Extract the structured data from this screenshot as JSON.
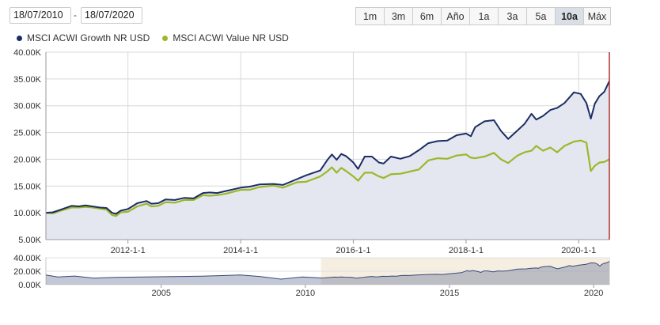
{
  "date_range": {
    "start": "18/07/2010",
    "separator": "-",
    "end": "18/07/2020"
  },
  "range_buttons": [
    {
      "label": "1m",
      "active": false
    },
    {
      "label": "3m",
      "active": false
    },
    {
      "label": "6m",
      "active": false
    },
    {
      "label": "Año",
      "active": false
    },
    {
      "label": "1a",
      "active": false
    },
    {
      "label": "3a",
      "active": false
    },
    {
      "label": "5a",
      "active": false
    },
    {
      "label": "10a",
      "active": true
    },
    {
      "label": "Máx",
      "active": false
    }
  ],
  "colors": {
    "growth": "#1c2d63",
    "value": "#9bb82a",
    "area": "#e4e7f0",
    "grid": "#d8d8d8",
    "navigator_window": "#f6eee0",
    "end_marker": "#b03030"
  },
  "chart_data": [
    {
      "type": "line",
      "title": "",
      "xlabel": "",
      "ylabel": "",
      "ylim": [
        5000,
        40000
      ],
      "yticks": [
        5000,
        10000,
        15000,
        20000,
        25000,
        30000,
        35000,
        40000
      ],
      "ytick_labels": [
        "5.00K",
        "10.00K",
        "15.00K",
        "20.00K",
        "25.00K",
        "30.00K",
        "35.00K",
        "40.00K"
      ],
      "xlim": [
        "2010-07-18",
        "2020-07-18"
      ],
      "xticks": [
        "2012-01-01",
        "2014-01-01",
        "2016-01-01",
        "2018-01-01",
        "2020-01-01"
      ],
      "xtick_labels": [
        "2012-1-1",
        "2014-1-1",
        "2016-1-1",
        "2018-1-1",
        "2020-1-1"
      ],
      "grid": true,
      "legend_position": "top-left",
      "series": [
        {
          "name": "MSCI ACWI Growth NR USD",
          "points": [
            [
              "2010-07-18",
              10000
            ],
            [
              "2010-09-01",
              10100
            ],
            [
              "2010-11-01",
              10700
            ],
            [
              "2011-01-01",
              11300
            ],
            [
              "2011-02-15",
              11200
            ],
            [
              "2011-04-01",
              11400
            ],
            [
              "2011-05-15",
              11200
            ],
            [
              "2011-07-01",
              11000
            ],
            [
              "2011-08-15",
              10900
            ],
            [
              "2011-09-20",
              10000
            ],
            [
              "2011-10-15",
              9800
            ],
            [
              "2011-11-15",
              10400
            ],
            [
              "2012-01-01",
              10700
            ],
            [
              "2012-03-01",
              11800
            ],
            [
              "2012-05-01",
              12200
            ],
            [
              "2012-06-01",
              11700
            ],
            [
              "2012-07-15",
              11800
            ],
            [
              "2012-09-01",
              12500
            ],
            [
              "2012-11-01",
              12400
            ],
            [
              "2013-01-01",
              12800
            ],
            [
              "2013-03-01",
              12700
            ],
            [
              "2013-05-01",
              13700
            ],
            [
              "2013-06-15",
              13800
            ],
            [
              "2013-08-01",
              13700
            ],
            [
              "2013-10-01",
              14100
            ],
            [
              "2014-01-01",
              14700
            ],
            [
              "2014-03-01",
              14900
            ],
            [
              "2014-05-01",
              15300
            ],
            [
              "2014-08-01",
              15400
            ],
            [
              "2014-10-01",
              15200
            ],
            [
              "2015-01-01",
              16300
            ],
            [
              "2015-03-01",
              17000
            ],
            [
              "2015-06-01",
              17900
            ],
            [
              "2015-07-15",
              19800
            ],
            [
              "2015-08-15",
              20900
            ],
            [
              "2015-09-15",
              19900
            ],
            [
              "2015-10-15",
              21000
            ],
            [
              "2015-11-15",
              20600
            ],
            [
              "2016-01-01",
              19400
            ],
            [
              "2016-02-01",
              18200
            ],
            [
              "2016-03-15",
              20500
            ],
            [
              "2016-05-01",
              20500
            ],
            [
              "2016-06-15",
              19400
            ],
            [
              "2016-07-15",
              19200
            ],
            [
              "2016-09-01",
              20500
            ],
            [
              "2016-11-01",
              20100
            ],
            [
              "2017-01-01",
              20600
            ],
            [
              "2017-03-01",
              21700
            ],
            [
              "2017-05-01",
              23000
            ],
            [
              "2017-07-01",
              23400
            ],
            [
              "2017-09-01",
              23500
            ],
            [
              "2017-11-01",
              24500
            ],
            [
              "2018-01-01",
              24800
            ],
            [
              "2018-02-01",
              24300
            ],
            [
              "2018-03-01",
              26000
            ],
            [
              "2018-05-01",
              27100
            ],
            [
              "2018-07-01",
              27300
            ],
            [
              "2018-08-15",
              25300
            ],
            [
              "2018-10-01",
              23800
            ],
            [
              "2018-12-01",
              25400
            ],
            [
              "2019-01-15",
              26600
            ],
            [
              "2019-03-01",
              28500
            ],
            [
              "2019-04-01",
              27400
            ],
            [
              "2019-05-15",
              28100
            ],
            [
              "2019-07-01",
              29200
            ],
            [
              "2019-08-15",
              29600
            ],
            [
              "2019-10-01",
              30500
            ],
            [
              "2019-12-01",
              32500
            ],
            [
              "2020-01-15",
              32200
            ],
            [
              "2020-02-20",
              30500
            ],
            [
              "2020-03-20",
              27600
            ],
            [
              "2020-04-15",
              30400
            ],
            [
              "2020-05-15",
              31800
            ],
            [
              "2020-06-15",
              32600
            ],
            [
              "2020-07-18",
              34600
            ]
          ]
        },
        {
          "name": "MSCI ACWI Value NR USD",
          "points": [
            [
              "2010-07-18",
              10000
            ],
            [
              "2010-09-01",
              9900
            ],
            [
              "2010-11-01",
              10500
            ],
            [
              "2011-01-01",
              11000
            ],
            [
              "2011-02-15",
              11000
            ],
            [
              "2011-04-01",
              11100
            ],
            [
              "2011-05-15",
              11000
            ],
            [
              "2011-07-01",
              10800
            ],
            [
              "2011-08-15",
              10600
            ],
            [
              "2011-09-20",
              9600
            ],
            [
              "2011-10-15",
              9400
            ],
            [
              "2011-11-15",
              10100
            ],
            [
              "2012-01-01",
              10200
            ],
            [
              "2012-03-01",
              11200
            ],
            [
              "2012-05-01",
              11700
            ],
            [
              "2012-06-01",
              11200
            ],
            [
              "2012-07-15",
              11300
            ],
            [
              "2012-09-01",
              12000
            ],
            [
              "2012-11-01",
              11900
            ],
            [
              "2013-01-01",
              12400
            ],
            [
              "2013-03-01",
              12400
            ],
            [
              "2013-05-01",
              13300
            ],
            [
              "2013-06-15",
              13200
            ],
            [
              "2013-08-01",
              13300
            ],
            [
              "2013-10-01",
              13600
            ],
            [
              "2014-01-01",
              14300
            ],
            [
              "2014-03-01",
              14300
            ],
            [
              "2014-05-01",
              14800
            ],
            [
              "2014-08-01",
              15100
            ],
            [
              "2014-10-01",
              14700
            ],
            [
              "2015-01-01",
              15700
            ],
            [
              "2015-03-01",
              15800
            ],
            [
              "2015-06-01",
              16800
            ],
            [
              "2015-07-15",
              17700
            ],
            [
              "2015-08-15",
              18500
            ],
            [
              "2015-09-15",
              17500
            ],
            [
              "2015-10-15",
              18400
            ],
            [
              "2015-11-15",
              17800
            ],
            [
              "2016-01-01",
              16800
            ],
            [
              "2016-02-01",
              16000
            ],
            [
              "2016-03-15",
              17500
            ],
            [
              "2016-05-01",
              17500
            ],
            [
              "2016-06-15",
              16800
            ],
            [
              "2016-07-15",
              16500
            ],
            [
              "2016-09-01",
              17200
            ],
            [
              "2016-11-01",
              17300
            ],
            [
              "2017-01-01",
              17700
            ],
            [
              "2017-03-01",
              18100
            ],
            [
              "2017-05-01",
              19800
            ],
            [
              "2017-07-01",
              20200
            ],
            [
              "2017-09-01",
              20100
            ],
            [
              "2017-11-01",
              20700
            ],
            [
              "2018-01-01",
              20900
            ],
            [
              "2018-02-01",
              20300
            ],
            [
              "2018-03-01",
              20200
            ],
            [
              "2018-05-01",
              20500
            ],
            [
              "2018-07-01",
              21200
            ],
            [
              "2018-08-15",
              20000
            ],
            [
              "2018-10-01",
              19300
            ],
            [
              "2018-12-01",
              20700
            ],
            [
              "2019-01-15",
              21300
            ],
            [
              "2019-03-01",
              21600
            ],
            [
              "2019-04-01",
              22500
            ],
            [
              "2019-05-15",
              21600
            ],
            [
              "2019-07-01",
              22200
            ],
            [
              "2019-08-15",
              21300
            ],
            [
              "2019-10-01",
              22500
            ],
            [
              "2019-12-01",
              23300
            ],
            [
              "2020-01-15",
              23500
            ],
            [
              "2020-02-20",
              23100
            ],
            [
              "2020-03-20",
              17800
            ],
            [
              "2020-04-15",
              18800
            ],
            [
              "2020-05-15",
              19400
            ],
            [
              "2020-06-15",
              19500
            ],
            [
              "2020-07-18",
              20000
            ]
          ]
        }
      ]
    },
    {
      "type": "area",
      "title": "",
      "ylim": [
        0,
        40000
      ],
      "yticks": [
        0,
        20000,
        40000
      ],
      "ytick_labels": [
        "0.00K",
        "20.00K",
        "40.00K"
      ],
      "xlim": [
        "2001-01-01",
        "2020-07-18"
      ],
      "xticks": [
        "2005-01-01",
        "2010-01-01",
        "2015-01-01",
        "2020-01-01"
      ],
      "xtick_labels": [
        "2005",
        "2010",
        "2015",
        "2020"
      ],
      "selected_range": [
        "2010-07-18",
        "2020-07-18"
      ],
      "series": [
        {
          "points": [
            [
              "2001-01-01",
              14500
            ],
            [
              "2001-06-01",
              11500
            ],
            [
              "2002-01-01",
              12800
            ],
            [
              "2002-09-01",
              9800
            ],
            [
              "2003-06-01",
              10800
            ],
            [
              "2004-06-01",
              11500
            ],
            [
              "2005-06-01",
              12000
            ],
            [
              "2006-06-01",
              12600
            ],
            [
              "2007-10-01",
              14500
            ],
            [
              "2008-06-01",
              12200
            ],
            [
              "2009-03-01",
              8200
            ],
            [
              "2009-12-01",
              11500
            ],
            [
              "2010-07-18",
              10000
            ]
          ]
        }
      ]
    }
  ]
}
